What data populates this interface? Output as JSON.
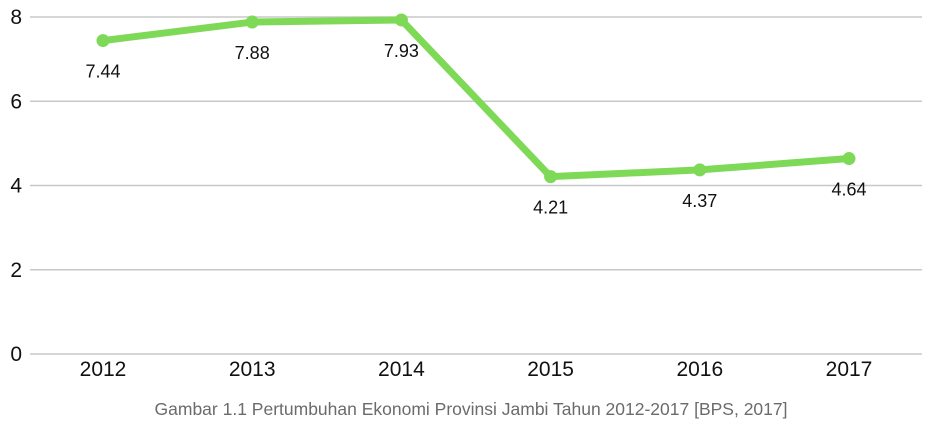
{
  "chart_data": {
    "type": "line",
    "categories": [
      "2012",
      "2013",
      "2014",
      "2015",
      "2016",
      "2017"
    ],
    "series": [
      {
        "values": [
          7.44,
          7.88,
          7.93,
          4.21,
          4.37,
          4.64
        ],
        "color": "#7ed957"
      }
    ],
    "data_labels": [
      "7.44",
      "7.88",
      "7.93",
      "4.21",
      "4.37",
      "4.64"
    ],
    "yticks": [
      "0",
      "2",
      "4",
      "6",
      "8"
    ],
    "ylim": [
      0,
      8
    ],
    "grid": true,
    "legend": "none"
  },
  "caption": "Gambar 1.1 Pertumbuhan Ekonomi Provinsi Jambi Tahun 2012-2017 [BPS, 2017]"
}
